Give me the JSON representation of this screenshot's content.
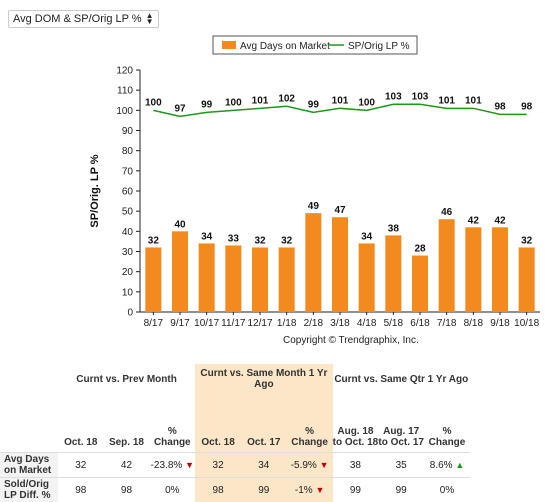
{
  "selector": {
    "label": "Avg DOM & SP/Orig LP %"
  },
  "colors": {
    "bar": "#f28a1e",
    "line": "#1a9a1a",
    "highlight": "#fbe6c8"
  },
  "chart_data": {
    "type": "bar",
    "categories": [
      "8/17",
      "9/17",
      "10/17",
      "11/17",
      "12/17",
      "1/18",
      "2/18",
      "3/18",
      "4/18",
      "5/18",
      "6/18",
      "7/18",
      "8/18",
      "9/18",
      "10/18"
    ],
    "series": [
      {
        "name": "Avg Days on Market",
        "type": "bar",
        "values": [
          32,
          40,
          34,
          33,
          32,
          32,
          49,
          47,
          34,
          38,
          28,
          46,
          42,
          42,
          32
        ]
      },
      {
        "name": "SP/Orig LP %",
        "type": "line",
        "values": [
          100,
          97,
          99,
          100,
          101,
          102,
          99,
          101,
          100,
          103,
          103,
          101,
          101,
          98,
          98
        ]
      }
    ],
    "ylabel": "SP/Orig. LP %",
    "ylim": [
      0,
      120
    ],
    "yticks": [
      0,
      10,
      20,
      30,
      40,
      50,
      60,
      70,
      80,
      90,
      100,
      110,
      120
    ],
    "grid": false,
    "legend": "top",
    "copyright": "Copyright © Trendgraphix, Inc."
  },
  "table": {
    "groups": [
      "Curnt vs. Prev Month",
      "Curnt vs. Same Month 1 Yr Ago",
      "Curnt vs. Same Qtr 1 Yr Ago"
    ],
    "headers": [
      "Oct. 18",
      "Sep. 18",
      "% Change",
      "Oct. 18",
      "Oct. 17",
      "% Change",
      "Aug. 18 to Oct. 18",
      "Aug. 17 to Oct. 17",
      "% Change"
    ],
    "rows": [
      {
        "label": "Avg Days on Market",
        "values": [
          "32",
          "42",
          "-23.8%",
          "32",
          "34",
          "-5.9%",
          "38",
          "35",
          "8.6%"
        ],
        "arrows": [
          "",
          "",
          "down",
          "",
          "",
          "down",
          "",
          "",
          "up"
        ]
      },
      {
        "label": "Sold/Orig LP Diff. %",
        "values": [
          "98",
          "98",
          "0%",
          "98",
          "99",
          "-1%",
          "99",
          "99",
          "0%"
        ],
        "arrows": [
          "",
          "",
          "",
          "",
          "",
          "down",
          "",
          "",
          ""
        ]
      }
    ]
  }
}
